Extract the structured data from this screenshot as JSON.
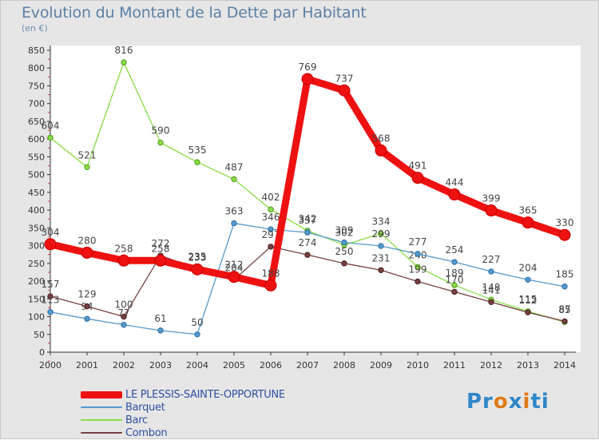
{
  "header": {
    "title": "Evolution du Montant de la Dette par Habitant",
    "unit": "(en €)"
  },
  "brand": {
    "parts": [
      "Pr",
      "o",
      "x",
      "i",
      "ti"
    ],
    "colors": [
      "#2f86c8",
      "#e07b18",
      "#2f86c8",
      "#e07b18",
      "#2f86c8"
    ]
  },
  "chart_data": {
    "type": "line",
    "title": "Evolution du Montant de la Dette par Habitant",
    "ylabel": "(en €)",
    "xlabel": "",
    "ylim": [
      0,
      850
    ],
    "yticks": [
      0,
      50,
      100,
      150,
      200,
      250,
      300,
      350,
      400,
      450,
      500,
      550,
      600,
      650,
      700,
      750,
      800,
      850
    ],
    "categories": [
      "2000",
      "2001",
      "2002",
      "2003",
      "2004",
      "2005",
      "2006",
      "2007",
      "2008",
      "2009",
      "2010",
      "2011",
      "2012",
      "2013",
      "2014"
    ],
    "grid": false,
    "legend": "bottom-left",
    "series": [
      {
        "name": "Barc",
        "color": "#88dd44",
        "dark": "#559922",
        "values": [
          604,
          521,
          816,
          590,
          535,
          487,
          402,
          342,
          302,
          334,
          240,
          189,
          148,
          115,
          85
        ]
      },
      {
        "name": "Barquet",
        "color": "#5599cc",
        "dark": "#2e6fa6",
        "values": [
          113,
          94,
          77,
          61,
          50,
          363,
          346,
          337,
          309,
          299,
          277,
          254,
          227,
          204,
          185
        ]
      },
      {
        "name": "Combon",
        "color": "#774040",
        "dark": "#4a1f1f",
        "values": [
          157,
          129,
          100,
          272,
          235,
          204,
          297,
          274,
          250,
          231,
          199,
          170,
          141,
          112,
          87
        ]
      },
      {
        "name": "LE PLESSIS-SAINTE-OPPORTUNE",
        "color": "#ee1111",
        "dark": "#cc0000",
        "values": [
          304,
          280,
          258,
          258,
          233,
          212,
          188,
          769,
          737,
          568,
          491,
          444,
          399,
          365,
          330
        ]
      }
    ],
    "legend_order": [
      "LE PLESSIS-SAINTE-OPPORTUNE",
      "Barquet",
      "Barc",
      "Combon"
    ]
  }
}
